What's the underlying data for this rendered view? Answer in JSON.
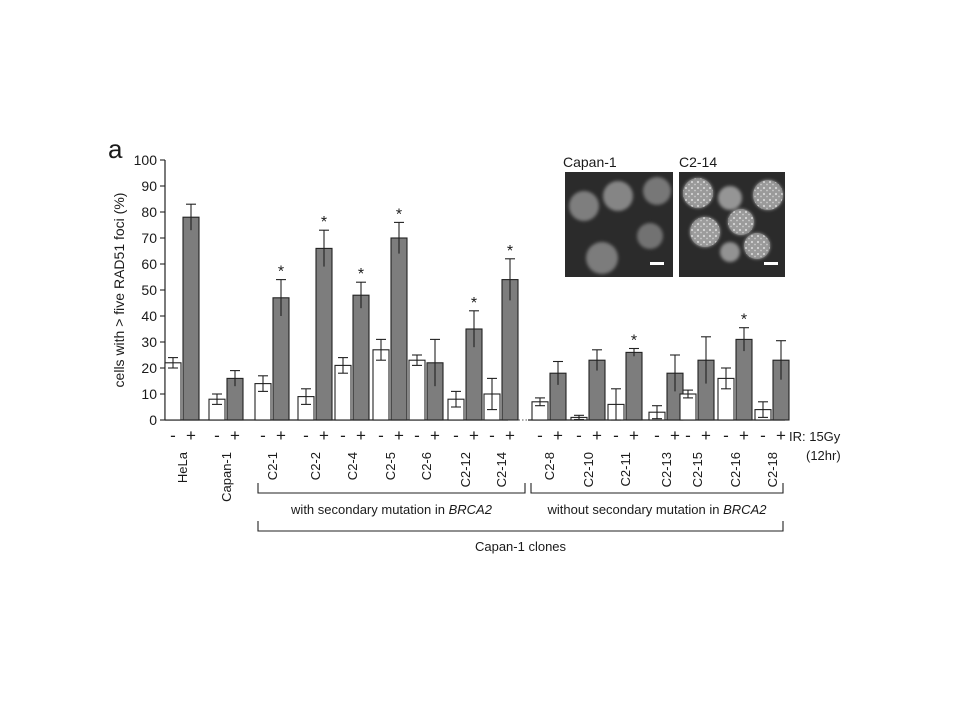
{
  "panel_letter": "a",
  "chart_data": {
    "type": "bar",
    "ylabel": "cells with > five RAD51 foci (%)",
    "ylim": [
      0,
      100
    ],
    "yticks": [
      0,
      10,
      20,
      30,
      40,
      50,
      60,
      70,
      80,
      90,
      100
    ],
    "categories": [
      "HeLa",
      "Capan-1",
      "C2-1",
      "C2-2",
      "C2-4",
      "C2-5",
      "C2-6",
      "C2-12",
      "C2-14",
      "C2-8",
      "C2-10",
      "C2-11",
      "C2-13",
      "C2-15",
      "C2-16",
      "C2-18"
    ],
    "treatment_labels": {
      "minus": "-",
      "plus": "+"
    },
    "treatment_note": "IR: 15Gy",
    "treatment_note_time": "(12hr)",
    "series": [
      {
        "name": "-",
        "values": [
          22,
          8,
          14,
          9,
          21,
          27,
          23,
          8,
          10,
          7,
          1,
          6,
          3,
          10,
          16,
          4
        ],
        "errors": [
          2,
          2,
          3,
          3,
          3,
          4,
          2,
          3,
          6,
          1.5,
          0.8,
          6,
          2.5,
          1.5,
          4,
          3
        ]
      },
      {
        "name": "+",
        "values": [
          78,
          16,
          47,
          66,
          48,
          70,
          22,
          35,
          54,
          18,
          23,
          26,
          18,
          23,
          31,
          23
        ],
        "errors": [
          5,
          3,
          7,
          7,
          5,
          6,
          9,
          7,
          8,
          4.5,
          4,
          1.5,
          7,
          9,
          4.5,
          7.5
        ]
      }
    ],
    "significant": [
      "C2-1",
      "C2-2",
      "C2-4",
      "C2-5",
      "C2-12",
      "C2-14",
      "C2-11",
      "C2-16"
    ],
    "star_symbol": "*",
    "groups": [
      {
        "label_prefix": "with secondary mutation in ",
        "label_italic": "BRCA2",
        "members": [
          "C2-1",
          "C2-2",
          "C2-4",
          "C2-5",
          "C2-6",
          "C2-12",
          "C2-14"
        ]
      },
      {
        "label_prefix": "without secondary mutation in ",
        "label_italic": "BRCA2",
        "members": [
          "C2-8",
          "C2-10",
          "C2-11",
          "C2-13",
          "C2-15",
          "C2-16",
          "C2-18"
        ]
      }
    ],
    "supergroup": {
      "label": "Capan-1 clones",
      "members_from": "C2-1",
      "members_to": "C2-18"
    },
    "grid": false
  },
  "insets": [
    {
      "label": "Capan-1"
    },
    {
      "label": "C2-14"
    }
  ]
}
